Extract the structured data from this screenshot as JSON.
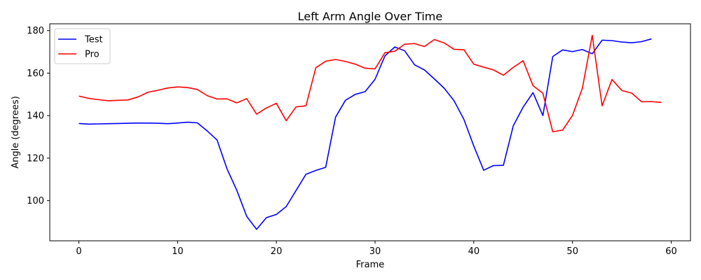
{
  "chart_data": {
    "type": "line",
    "title": "Left Arm Angle Over Time",
    "xlabel": "Frame",
    "ylabel": "Angle (degrees)",
    "xlim": [
      -2.95,
      61.95
    ],
    "ylim": [
      81.1,
      183.2
    ],
    "xticks": [
      0,
      10,
      20,
      30,
      40,
      50,
      60
    ],
    "yticks": [
      100,
      120,
      140,
      160,
      180
    ],
    "grid": false,
    "legend": "upper-left",
    "series": [
      {
        "name": "Test",
        "color": "#0000ff",
        "x": [
          0,
          1,
          2,
          3,
          4,
          5,
          6,
          7,
          8,
          9,
          10,
          11,
          12,
          13,
          14,
          15,
          16,
          17,
          18,
          19,
          20,
          21,
          22,
          23,
          24,
          25,
          26,
          27,
          28,
          29,
          30,
          31,
          32,
          33,
          34,
          35,
          36,
          37,
          38,
          39,
          40,
          41,
          42,
          43,
          44,
          45,
          46,
          47,
          48,
          49,
          50,
          51,
          52,
          53,
          54,
          55,
          56,
          57,
          58
        ],
        "values": [
          136.3,
          136.0,
          136.1,
          136.2,
          136.3,
          136.4,
          136.5,
          136.5,
          136.4,
          136.2,
          136.5,
          136.9,
          136.6,
          132.8,
          128.5,
          115.0,
          104.8,
          92.6,
          86.5,
          92.0,
          93.5,
          97.2,
          104.8,
          112.4,
          114.2,
          115.7,
          139.3,
          147.2,
          150.0,
          151.3,
          157.1,
          168.1,
          172.3,
          170.5,
          163.9,
          161.5,
          157.3,
          152.9,
          147.0,
          138.2,
          125.7,
          114.3,
          116.5,
          116.6,
          135.2,
          144.0,
          150.8,
          140.0,
          167.8,
          170.9,
          170.1,
          171.1,
          169.1,
          175.5,
          175.3,
          174.6,
          174.3,
          174.8,
          176.1
        ]
      },
      {
        "name": "Pro",
        "color": "#ff0000",
        "x": [
          0,
          1,
          2,
          3,
          4,
          5,
          6,
          7,
          8,
          9,
          10,
          11,
          12,
          13,
          14,
          15,
          16,
          17,
          18,
          19,
          20,
          21,
          22,
          23,
          24,
          25,
          26,
          27,
          28,
          29,
          30,
          31,
          32,
          33,
          34,
          35,
          36,
          37,
          38,
          39,
          40,
          41,
          42,
          43,
          44,
          45,
          46,
          47,
          48,
          49,
          50,
          51,
          52,
          53,
          54,
          55,
          56,
          57,
          58,
          59
        ],
        "values": [
          149.2,
          148.1,
          147.5,
          147.0,
          147.2,
          147.4,
          148.8,
          151.0,
          151.9,
          153.0,
          153.5,
          153.2,
          152.3,
          149.4,
          147.8,
          147.9,
          146.0,
          148.0,
          140.7,
          143.6,
          145.8,
          137.6,
          144.1,
          144.6,
          162.5,
          165.6,
          166.4,
          165.5,
          164.2,
          162.3,
          162.0,
          169.6,
          170.3,
          173.6,
          173.9,
          172.5,
          175.8,
          174.2,
          171.2,
          171.0,
          164.2,
          162.8,
          161.5,
          159.0,
          162.7,
          165.8,
          154.1,
          150.5,
          132.4,
          133.2,
          140.1,
          152.9,
          177.8,
          144.6,
          157.0,
          151.8,
          150.6,
          146.5,
          146.6,
          146.2
        ]
      }
    ]
  }
}
